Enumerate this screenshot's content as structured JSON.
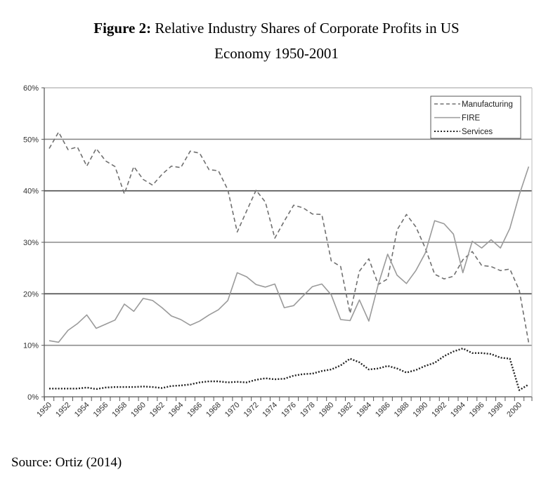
{
  "header": {
    "figure_label": "Figure 2:",
    "title_rest": " Relative Industry Shares of Corporate Profits in US",
    "title_line2": "Economy 1950-2001"
  },
  "footer": {
    "source": "Source: Ortiz (2014)"
  },
  "chart_data": {
    "type": "line",
    "title": "Figure 2: Relative Industry Shares of Corporate Profits in US Economy 1950-2001",
    "xlabel": "",
    "ylabel": "",
    "ylim": [
      0,
      60
    ],
    "y_unit": "%",
    "yticks": [
      0,
      10,
      20,
      30,
      40,
      50,
      60
    ],
    "ytick_labels": [
      "0%",
      "10%",
      "20%",
      "30%",
      "40%",
      "50%",
      "60%"
    ],
    "x": [
      1950,
      1951,
      1952,
      1953,
      1954,
      1955,
      1956,
      1957,
      1958,
      1959,
      1960,
      1961,
      1962,
      1963,
      1964,
      1965,
      1966,
      1967,
      1968,
      1969,
      1970,
      1971,
      1972,
      1973,
      1974,
      1975,
      1976,
      1977,
      1978,
      1979,
      1980,
      1981,
      1982,
      1983,
      1984,
      1985,
      1986,
      1987,
      1988,
      1989,
      1990,
      1991,
      1992,
      1993,
      1994,
      1995,
      1996,
      1997,
      1998,
      1999,
      2000,
      2001
    ],
    "xtick_labels": [
      "1950",
      "1952",
      "1954",
      "1956",
      "1958",
      "1960",
      "1962",
      "1964",
      "1966",
      "1968",
      "1970",
      "1972",
      "1974",
      "1976",
      "1978",
      "1980",
      "1982",
      "1984",
      "1986",
      "1988",
      "1990",
      "1992",
      "1994",
      "1996",
      "1998",
      "2000"
    ],
    "grid": "horizontal",
    "legend_position": "top-right",
    "series": [
      {
        "name": "Manufacturing",
        "style": "dashed",
        "color": "#707070",
        "values": [
          48.2,
          51.4,
          48.0,
          48.5,
          44.8,
          48.2,
          45.8,
          44.7,
          39.4,
          44.7,
          42.2,
          41.1,
          43.2,
          44.8,
          44.5,
          47.7,
          47.3,
          44.1,
          43.9,
          40.2,
          32.0,
          36.1,
          40.1,
          37.8,
          30.8,
          34.1,
          37.2,
          36.7,
          35.5,
          35.4,
          26.4,
          25.3,
          16.2,
          24.4,
          26.8,
          21.8,
          22.9,
          32.4,
          35.4,
          33.0,
          28.9,
          23.8,
          22.9,
          23.4,
          26.6,
          28.2,
          25.5,
          25.3,
          24.5,
          24.8,
          20.7,
          10.5
        ]
      },
      {
        "name": "FIRE",
        "style": "solid",
        "color": "#9a9a9a",
        "values": [
          10.9,
          10.6,
          12.9,
          14.2,
          15.9,
          13.3,
          14.1,
          14.9,
          18.0,
          16.6,
          19.1,
          18.7,
          17.3,
          15.7,
          15.0,
          13.9,
          14.7,
          15.9,
          16.9,
          18.7,
          24.1,
          23.3,
          21.8,
          21.3,
          21.9,
          17.3,
          17.7,
          19.6,
          21.4,
          21.9,
          19.8,
          15.0,
          14.8,
          18.8,
          14.7,
          21.8,
          27.7,
          23.6,
          22.0,
          24.5,
          27.9,
          34.2,
          33.6,
          31.6,
          24.1,
          30.2,
          28.9,
          30.5,
          28.9,
          32.7,
          39.2,
          44.7
        ]
      },
      {
        "name": "Services",
        "style": "dotted",
        "color": "#222222",
        "values": [
          1.6,
          1.6,
          1.6,
          1.6,
          1.8,
          1.5,
          1.8,
          1.9,
          1.9,
          1.9,
          2.0,
          1.9,
          1.7,
          2.1,
          2.2,
          2.4,
          2.8,
          3.0,
          3.0,
          2.8,
          2.9,
          2.8,
          3.3,
          3.6,
          3.4,
          3.5,
          4.1,
          4.4,
          4.5,
          5.0,
          5.3,
          6.1,
          7.4,
          6.7,
          5.3,
          5.5,
          6.0,
          5.5,
          4.7,
          5.2,
          6.0,
          6.6,
          7.9,
          8.8,
          9.4,
          8.5,
          8.5,
          8.3,
          7.6,
          7.4,
          1.3,
          2.4
        ]
      }
    ]
  }
}
